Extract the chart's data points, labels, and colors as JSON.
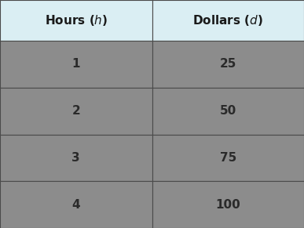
{
  "headers": [
    [
      "Hours (",
      "h",
      ")"
    ],
    [
      "Dollars (",
      "d",
      ")"
    ]
  ],
  "rows": [
    [
      "1",
      "25"
    ],
    [
      "2",
      "50"
    ],
    [
      "3",
      "75"
    ],
    [
      "4",
      "100"
    ]
  ],
  "header_bg_color": "#daeef3",
  "header_text_color": "#1a1a1a",
  "row_bg_color": "#8c8c8c",
  "row_text_color": "#2a2a2a",
  "border_color": "#4a4a4a",
  "header_font_size": 11,
  "row_font_size": 11,
  "fig_width": 3.87,
  "fig_height": 2.91,
  "fig_dpi": 100
}
